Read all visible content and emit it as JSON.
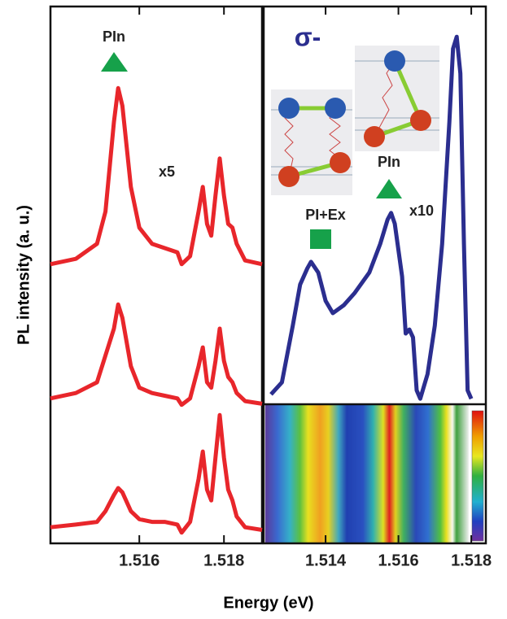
{
  "chart_data": [
    {
      "type": "line",
      "xlabel": "Energy (eV)",
      "ylabel": "PL intensity (a. u.)",
      "x": [
        1.5139,
        1.5145,
        1.515,
        1.5152,
        1.5154,
        1.5155,
        1.5156,
        1.5158,
        1.516,
        1.5163,
        1.5166,
        1.5169,
        1.517,
        1.5172,
        1.5174,
        1.5175,
        1.5176,
        1.5177,
        1.5178,
        1.5179,
        1.518,
        1.5181,
        1.5182,
        1.5183,
        1.5185,
        1.5189
      ],
      "series": [
        {
          "color": "#e8262b",
          "values": [
            52.0,
            53.0,
            55.8,
            61.8,
            78.5,
            84.8,
            81.5,
            66.4,
            58.8,
            55.8,
            55.0,
            54.2,
            52.0,
            53.5,
            61.8,
            66.4,
            59.5,
            57.3,
            64.8,
            71.7,
            64.8,
            59.5,
            58.8,
            55.8,
            52.7,
            52.0
          ]
        },
        {
          "color": "#e8262b",
          "values": [
            27.0,
            28.0,
            30.0,
            35.0,
            40.0,
            44.5,
            42.0,
            33.0,
            29.0,
            28.0,
            27.5,
            27.0,
            25.8,
            27.0,
            33.0,
            36.5,
            30.0,
            29.0,
            34.0,
            40.0,
            34.0,
            31.0,
            30.0,
            28.0,
            26.5,
            26.0
          ]
        },
        {
          "color": "#e8262b",
          "values": [
            3.0,
            3.5,
            4.0,
            6.0,
            9.0,
            10.3,
            9.5,
            6.0,
            4.5,
            4.0,
            4.0,
            3.5,
            2.0,
            4.0,
            12.0,
            17.1,
            10.0,
            8.0,
            16.0,
            23.9,
            16.0,
            10.0,
            8.0,
            5.0,
            3.0,
            2.5
          ]
        }
      ],
      "xlim": [
        1.5139,
        1.5189
      ],
      "xticks": [
        1.516,
        1.518
      ],
      "ylim": [
        0,
        100
      ],
      "annotations": [
        "PIn",
        "x5"
      ]
    },
    {
      "type": "line",
      "x": [
        1.5125,
        1.5128,
        1.5131,
        1.5133,
        1.5135,
        1.5136,
        1.5138,
        1.514,
        1.5142,
        1.5145,
        1.5148,
        1.5152,
        1.5155,
        1.5157,
        1.5158,
        1.5159,
        1.5161,
        1.5162,
        1.5163,
        1.5164,
        1.5165,
        1.5166,
        1.5168,
        1.517,
        1.5172,
        1.5174,
        1.5175,
        1.5176,
        1.5177,
        1.5178,
        1.5179,
        1.518
      ],
      "series": [
        {
          "color": "#2b2e8f",
          "values": [
            2.5,
            5.5,
            19.8,
            30.1,
            34.2,
            35.8,
            33.1,
            26.0,
            22.9,
            24.9,
            28.0,
            33.1,
            40.3,
            46.4,
            48.1,
            45.4,
            32.1,
            17.8,
            18.8,
            16.8,
            3.5,
            1.4,
            7.6,
            19.8,
            40.3,
            71.0,
            89.4,
            92.4,
            83.2,
            40.3,
            3.5,
            1.4
          ]
        }
      ],
      "xlim": [
        1.5123,
        1.5184
      ],
      "xticks": [
        1.514,
        1.516,
        1.518
      ],
      "ylim": [
        0,
        100
      ],
      "annotations": [
        "σ-",
        "PI+Ex",
        "PIn",
        "x10"
      ]
    }
  ]
}
